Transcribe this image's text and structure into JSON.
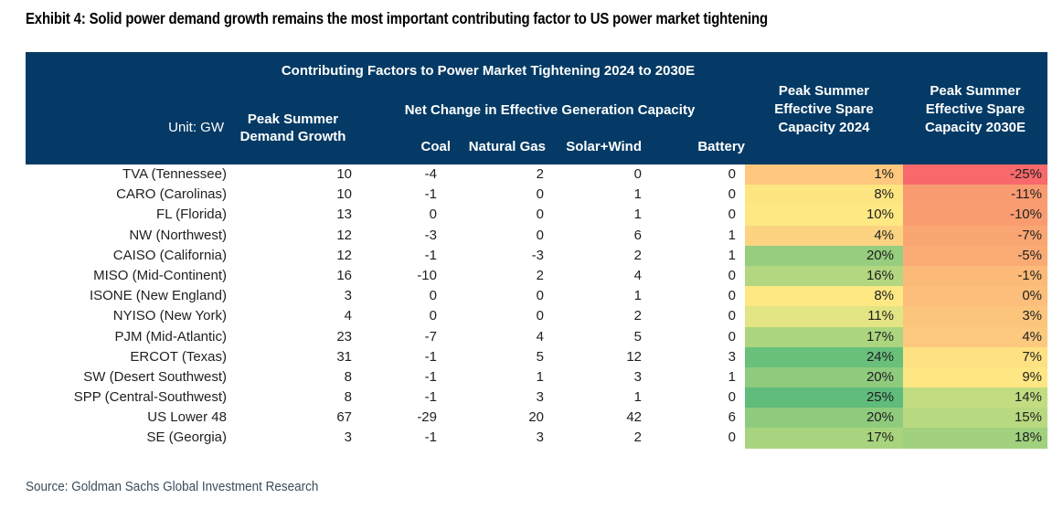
{
  "page": {
    "title": "Exhibit 4: Solid power demand growth remains the most important contributing factor to US power market tightening",
    "source": "Source: Goldman Sachs Global Investment Research"
  },
  "colors": {
    "header_bg": "#043A65",
    "header_text": "#FFFFFF",
    "heat_red": "#F8696B",
    "heat_yellow": "#FFEB84",
    "heat_green": "#63BE7B"
  },
  "table": {
    "header": {
      "group_title": "Contributing Factors to Power Market Tightening 2024 to 2030E",
      "unit_label": "Unit: GW",
      "demand_lines": [
        "Peak Summer",
        "Demand Growth"
      ],
      "net_change_group": "Net Change in Effective Generation Capacity",
      "sub_cols": [
        "Coal",
        "Natural Gas",
        "Solar+Wind",
        "Battery"
      ],
      "spare_2024_lines": [
        "Peak Summer",
        "Effective Spare",
        "Capacity 2024"
      ],
      "spare_2030_lines": [
        "Peak Summer",
        "Effective Spare",
        "Capacity 2030E"
      ]
    },
    "rows": [
      {
        "region": "TVA (Tennessee)",
        "demand": "10",
        "coal": "-4",
        "gas": "2",
        "solar_wind": "0",
        "battery": "0",
        "spare_2024": "1%",
        "spare_2024_bg": "#FFC87E",
        "spare_2030": "-25%",
        "spare_2030_bg": "#F8696B"
      },
      {
        "region": "CARO (Carolinas)",
        "demand": "10",
        "coal": "-1",
        "gas": "0",
        "solar_wind": "1",
        "battery": "0",
        "spare_2024": "8%",
        "spare_2024_bg": "#FDE582",
        "spare_2030": "-11%",
        "spare_2030_bg": "#F99B70"
      },
      {
        "region": "FL (Florida)",
        "demand": "13",
        "coal": "0",
        "gas": "0",
        "solar_wind": "1",
        "battery": "0",
        "spare_2024": "10%",
        "spare_2024_bg": "#FDE884",
        "spare_2030": "-10%",
        "spare_2030_bg": "#F99D71"
      },
      {
        "region": "NW (Northwest)",
        "demand": "12",
        "coal": "-3",
        "gas": "0",
        "solar_wind": "6",
        "battery": "1",
        "spare_2024": "4%",
        "spare_2024_bg": "#FCD380",
        "spare_2030": "-7%",
        "spare_2030_bg": "#FAA673"
      },
      {
        "region": "CAISO (California)",
        "demand": "12",
        "coal": "-1",
        "gas": "-3",
        "solar_wind": "2",
        "battery": "1",
        "spare_2024": "20%",
        "spare_2024_bg": "#96CD7E",
        "spare_2030": "-5%",
        "spare_2030_bg": "#FAAB74"
      },
      {
        "region": "MISO (Mid-Continent)",
        "demand": "16",
        "coal": "-10",
        "gas": "2",
        "solar_wind": "4",
        "battery": "0",
        "spare_2024": "16%",
        "spare_2024_bg": "#B3D780",
        "spare_2030": "-1%",
        "spare_2030_bg": "#FBBA78"
      },
      {
        "region": "ISONE (New England)",
        "demand": "3",
        "coal": "0",
        "gas": "0",
        "solar_wind": "1",
        "battery": "0",
        "spare_2024": "8%",
        "spare_2024_bg": "#FDE884",
        "spare_2030": "0%",
        "spare_2030_bg": "#FCBE7A"
      },
      {
        "region": "NYISO (New York)",
        "demand": "4",
        "coal": "0",
        "gas": "0",
        "solar_wind": "2",
        "battery": "0",
        "spare_2024": "11%",
        "spare_2024_bg": "#E3E483",
        "spare_2030": "3%",
        "spare_2030_bg": "#FCC57C"
      },
      {
        "region": "PJM (Mid-Atlantic)",
        "demand": "23",
        "coal": "-7",
        "gas": "4",
        "solar_wind": "5",
        "battery": "0",
        "spare_2024": "17%",
        "spare_2024_bg": "#ACD57F",
        "spare_2030": "4%",
        "spare_2030_bg": "#FCC97E"
      },
      {
        "region": "ERCOT (Texas)",
        "demand": "31",
        "coal": "-1",
        "gas": "5",
        "solar_wind": "12",
        "battery": "3",
        "spare_2024": "24%",
        "spare_2024_bg": "#68C07B",
        "spare_2030": "7%",
        "spare_2030_bg": "#FDE182"
      },
      {
        "region": "SW (Desert Southwest)",
        "demand": "8",
        "coal": "-1",
        "gas": "1",
        "solar_wind": "3",
        "battery": "1",
        "spare_2024": "20%",
        "spare_2024_bg": "#8FCB7D",
        "spare_2030": "9%",
        "spare_2030_bg": "#FDE683"
      },
      {
        "region": "SPP (Central-Southwest)",
        "demand": "8",
        "coal": "-1",
        "gas": "3",
        "solar_wind": "1",
        "battery": "0",
        "spare_2024": "25%",
        "spare_2024_bg": "#5FBC7A",
        "spare_2030": "14%",
        "spare_2030_bg": "#C2DC81"
      },
      {
        "region": "US Lower 48",
        "demand": "67",
        "coal": "-29",
        "gas": "20",
        "solar_wind": "42",
        "battery": "6",
        "spare_2024": "20%",
        "spare_2024_bg": "#8FCB7D",
        "spare_2030": "15%",
        "spare_2030_bg": "#B9D980"
      },
      {
        "region": "SE (Georgia)",
        "demand": "3",
        "coal": "-1",
        "gas": "3",
        "solar_wind": "2",
        "battery": "0",
        "spare_2024": "17%",
        "spare_2024_bg": "#A8D47F",
        "spare_2030": "18%",
        "spare_2030_bg": "#A1D17E"
      }
    ]
  },
  "chart_data": {
    "type": "table",
    "title": "Contributing Factors to Power Market Tightening 2024 to 2030E",
    "unit": "GW",
    "columns": [
      "Region",
      "Peak Summer Demand Growth",
      "Coal",
      "Natural Gas",
      "Solar+Wind",
      "Battery",
      "Peak Summer Effective Spare Capacity 2024",
      "Peak Summer Effective Spare Capacity 2030E"
    ],
    "net_change_subgroup": [
      "Coal",
      "Natural Gas",
      "Solar+Wind",
      "Battery"
    ],
    "rows": [
      [
        "TVA (Tennessee)",
        10,
        -4,
        2,
        0,
        0,
        "1%",
        "-25%"
      ],
      [
        "CARO (Carolinas)",
        10,
        -1,
        0,
        1,
        0,
        "8%",
        "-11%"
      ],
      [
        "FL (Florida)",
        13,
        0,
        0,
        1,
        0,
        "10%",
        "-10%"
      ],
      [
        "NW (Northwest)",
        12,
        -3,
        0,
        6,
        1,
        "4%",
        "-7%"
      ],
      [
        "CAISO (California)",
        12,
        -1,
        -3,
        2,
        1,
        "20%",
        "-5%"
      ],
      [
        "MISO (Mid-Continent)",
        16,
        -10,
        2,
        4,
        0,
        "16%",
        "-1%"
      ],
      [
        "ISONE (New England)",
        3,
        0,
        0,
        1,
        0,
        "8%",
        "0%"
      ],
      [
        "NYISO (New York)",
        4,
        0,
        0,
        2,
        0,
        "11%",
        "3%"
      ],
      [
        "PJM (Mid-Atlantic)",
        23,
        -7,
        4,
        5,
        0,
        "17%",
        "4%"
      ],
      [
        "ERCOT (Texas)",
        31,
        -1,
        5,
        12,
        3,
        "24%",
        "7%"
      ],
      [
        "SW (Desert Southwest)",
        8,
        -1,
        1,
        3,
        1,
        "20%",
        "9%"
      ],
      [
        "SPP (Central-Southwest)",
        8,
        -1,
        3,
        1,
        0,
        "25%",
        "14%"
      ],
      [
        "US Lower 48",
        67,
        -29,
        20,
        42,
        6,
        "20%",
        "15%"
      ],
      [
        "SE (Georgia)",
        3,
        -1,
        3,
        2,
        0,
        "17%",
        "18%"
      ]
    ],
    "heatmap_columns": [
      "Peak Summer Effective Spare Capacity 2024",
      "Peak Summer Effective Spare Capacity 2030E"
    ],
    "heatmap_scale": {
      "low": "#F8696B",
      "mid": "#FFEB84",
      "high": "#63BE7B"
    }
  }
}
